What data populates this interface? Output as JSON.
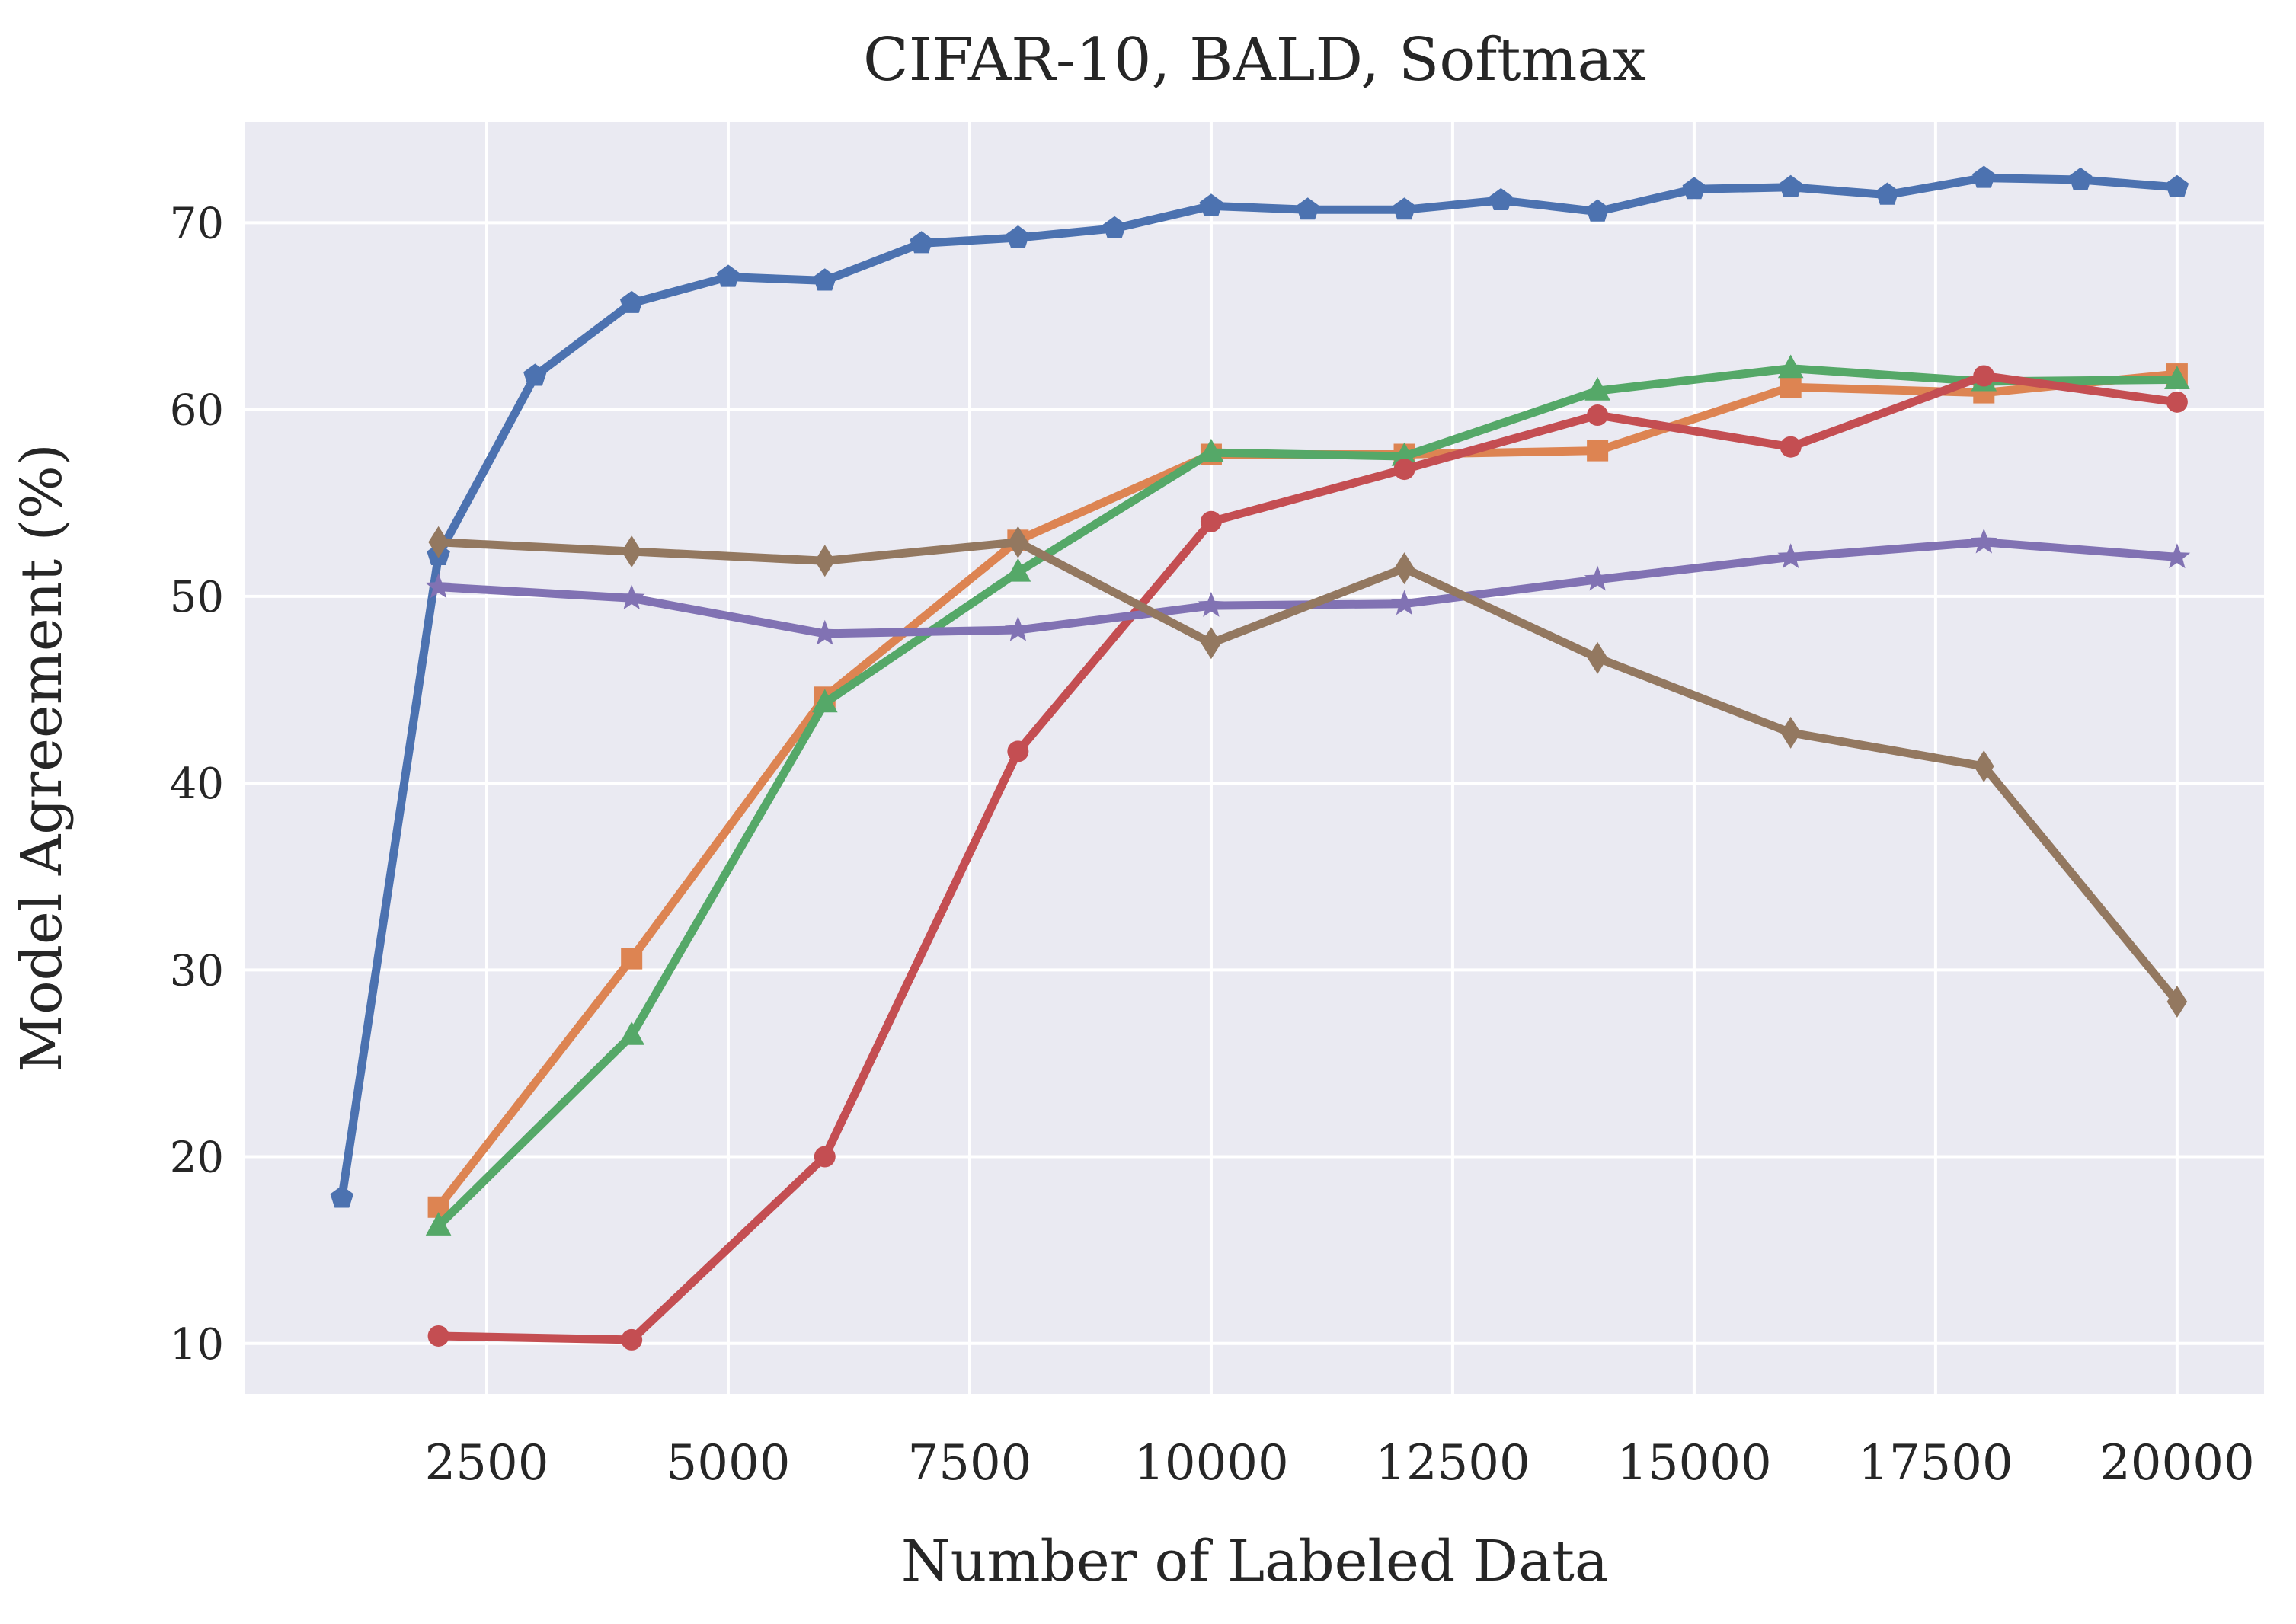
{
  "chart_data": {
    "type": "line",
    "title": "CIFAR-10, BALD, Softmax",
    "xlabel": "Number of Labeled Data",
    "ylabel": "Model Agreement (%)",
    "xlim": [
      0,
      20900
    ],
    "ylim": [
      7.3,
      75.4
    ],
    "xticks": [
      2500,
      5000,
      7500,
      10000,
      12500,
      15000,
      17500,
      20000
    ],
    "yticks": [
      10,
      20,
      30,
      40,
      50,
      60,
      70
    ],
    "grid": true,
    "legend": "none",
    "background": "#eaeaf2",
    "series": [
      {
        "color": "#4c72b0",
        "marker": "pentagon",
        "x": [
          1000,
          2000,
          3000,
          4000,
          5000,
          6000,
          7000,
          8000,
          9000,
          10000,
          11000,
          12000,
          13000,
          14000,
          15000,
          16000,
          17000,
          18000,
          19000,
          20000
        ],
        "y": [
          17.8,
          52.2,
          61.8,
          65.7,
          67.1,
          66.9,
          68.9,
          69.2,
          69.7,
          70.9,
          70.7,
          70.7,
          71.2,
          70.6,
          71.8,
          71.9,
          71.5,
          72.4,
          72.3,
          71.9
        ]
      },
      {
        "color": "#dd8452",
        "marker": "square",
        "x": [
          2000,
          4000,
          6000,
          8000,
          10000,
          12000,
          14000,
          16000,
          18000,
          20000
        ],
        "y": [
          17.3,
          30.6,
          44.6,
          53.0,
          57.6,
          57.6,
          57.8,
          61.2,
          60.9,
          61.9
        ]
      },
      {
        "color": "#55a868",
        "marker": "triangle",
        "x": [
          2000,
          4000,
          6000,
          8000,
          10000,
          12000,
          14000,
          16000,
          18000,
          20000
        ],
        "y": [
          16.3,
          26.5,
          44.3,
          51.3,
          57.7,
          57.5,
          61.0,
          62.2,
          61.5,
          61.6
        ]
      },
      {
        "color": "#c44e52",
        "marker": "circle",
        "x": [
          2000,
          4000,
          6000,
          8000,
          10000,
          12000,
          14000,
          16000,
          18000,
          20000
        ],
        "y": [
          10.4,
          10.2,
          20.0,
          41.7,
          54.0,
          56.8,
          59.7,
          58.0,
          61.8,
          60.4
        ]
      },
      {
        "color": "#8172b3",
        "marker": "star",
        "x": [
          2000,
          4000,
          6000,
          8000,
          10000,
          12000,
          14000,
          16000,
          18000,
          20000
        ],
        "y": [
          50.5,
          49.9,
          48.0,
          48.2,
          49.5,
          49.6,
          50.9,
          52.1,
          52.9,
          52.1
        ]
      },
      {
        "color": "#937860",
        "marker": "diamond",
        "x": [
          2000,
          4000,
          6000,
          8000,
          10000,
          12000,
          14000,
          16000,
          18000,
          20000
        ],
        "y": [
          52.9,
          52.4,
          51.9,
          52.9,
          47.5,
          51.5,
          46.7,
          42.7,
          40.9,
          28.3
        ]
      }
    ]
  }
}
